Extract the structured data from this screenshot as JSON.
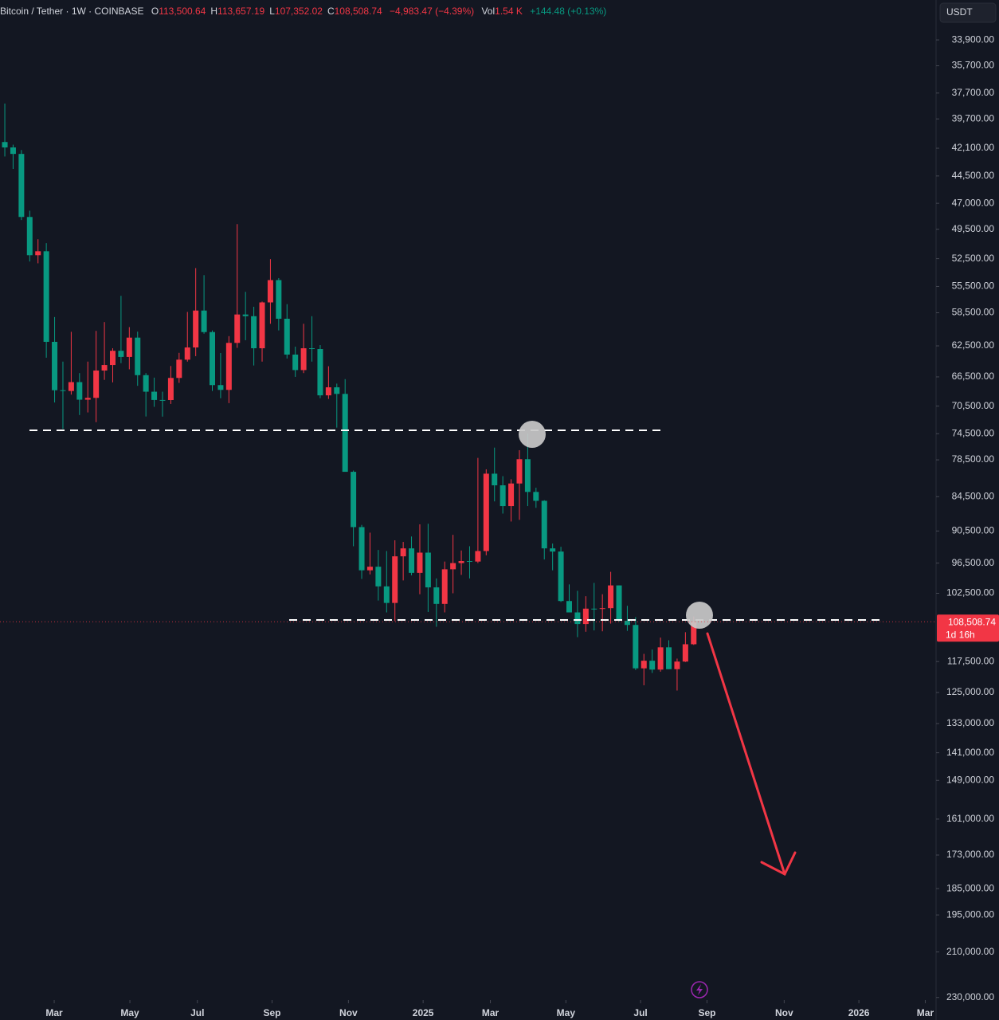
{
  "chart_data": {
    "type": "candlestick",
    "title": "Bitcoin / Tether · 1W · COINBASE",
    "ohlc_legend": [
      {
        "key": "O",
        "text": "113,500.64"
      },
      {
        "key": "H",
        "text": "113,657.19"
      },
      {
        "key": "L",
        "text": "107,352.02"
      },
      {
        "key": "C",
        "text": "108,508.74"
      }
    ],
    "change_label": "−4,983.47 (−4.39%)",
    "volume_key": "Vol",
    "volume_label": "1.54 K",
    "volume_change_label": "+144.48 (+0.13%)",
    "currency": "USDT",
    "last_price": {
      "value": 108508.74,
      "label": "108,508.74"
    },
    "countdown": "1d 16h",
    "up_color": "#089981",
    "down_color": "#f23645",
    "inverted": true,
    "log_scale": true,
    "open": [
      41580,
      42030,
      42580,
      48300,
      52140,
      51730,
      62000,
      68300,
      68400,
      67200,
      69600,
      69350,
      65660,
      64940,
      63120,
      63900,
      61480,
      66270,
      68500,
      69640,
      69650,
      66640,
      64250,
      62700,
      58240,
      60800,
      67600,
      68250,
      62130,
      58700,
      58900,
      62800,
      57300,
      54800,
      59200,
      63600,
      65600,
      62800,
      62900,
      69000,
      67900,
      68800,
      80400,
      89800,
      97900,
      97200,
      101100,
      104500,
      95200,
      93700,
      98400,
      94500,
      101300,
      104700,
      97700,
      96500,
      96100,
      96200,
      94200,
      80700,
      82600,
      86100,
      82300,
      78400,
      83700,
      85200,
      93700,
      94300,
      104100,
      106500,
      109000,
      105700,
      105700,
      105600,
      100900,
      108300,
      109200,
      119100,
      117300,
      119400,
      114200,
      119300,
      117500,
      113500.64
    ],
    "high": [
      42800,
      43880,
      48600,
      52800,
      52990,
      64000,
      69990,
      73780,
      68900,
      71770,
      71400,
      72800,
      66900,
      67230,
      64700,
      65500,
      67700,
      71980,
      70600,
      72000,
      70200,
      67300,
      64500,
      63800,
      61000,
      68400,
      69400,
      70080,
      62750,
      61800,
      65000,
      64500,
      59800,
      60600,
      64100,
      66500,
      66000,
      64500,
      69400,
      69500,
      73600,
      80300,
      93300,
      99600,
      98700,
      104000,
      106500,
      108350,
      99900,
      98900,
      102700,
      106400,
      109600,
      106500,
      102500,
      98800,
      99500,
      96500,
      95000,
      85300,
      87400,
      88800,
      88500,
      86100,
      86400,
      95800,
      97900,
      104300,
      105800,
      111900,
      110700,
      110400,
      110600,
      108900,
      108500,
      110500,
      119500,
      123200,
      120200,
      119900,
      119300,
      124500,
      117600,
      113657.19
    ],
    "low": [
      38500,
      41800,
      42250,
      47700,
      50500,
      50900,
      59000,
      64500,
      60770,
      66000,
      64500,
      60660,
      59600,
      62800,
      56550,
      60200,
      60750,
      66000,
      66600,
      68500,
      65070,
      63380,
      58400,
      53500,
      54260,
      60600,
      63400,
      61300,
      49000,
      56100,
      57800,
      57200,
      52550,
      54580,
      57500,
      62600,
      59800,
      58900,
      62400,
      65100,
      67400,
      66800,
      80200,
      89400,
      90800,
      94000,
      94200,
      92200,
      92500,
      91500,
      89300,
      89200,
      99500,
      96200,
      91200,
      94100,
      93300,
      78200,
      80000,
      76600,
      81100,
      81600,
      77000,
      74500,
      83000,
      85100,
      92800,
      93400,
      100700,
      102000,
      103100,
      100400,
      102700,
      98200,
      100900,
      105100,
      107500,
      115700,
      114700,
      112000,
      112600,
      116800,
      110800,
      107352.02
    ],
    "close": [
      42030,
      42580,
      48300,
      52140,
      51730,
      62000,
      68300,
      68400,
      67200,
      69600,
      69350,
      65660,
      64940,
      63120,
      63900,
      61480,
      66270,
      68500,
      69640,
      69650,
      66640,
      64250,
      62700,
      58240,
      60800,
      67600,
      68250,
      62130,
      58700,
      58900,
      62800,
      57300,
      54800,
      59200,
      63600,
      65600,
      62800,
      62900,
      69000,
      67900,
      68800,
      80400,
      89800,
      97900,
      97200,
      101100,
      104500,
      95200,
      93700,
      98400,
      94500,
      101300,
      104700,
      97700,
      96500,
      96100,
      96200,
      94200,
      80700,
      82600,
      86100,
      82300,
      78400,
      83700,
      85200,
      93700,
      94300,
      104100,
      106500,
      109000,
      105700,
      105700,
      105600,
      100900,
      108300,
      109200,
      119100,
      117300,
      119400,
      114200,
      119300,
      117500,
      113500,
      108508.74
    ],
    "ylim": [
      31300,
      231200
    ],
    "yticks": [
      {
        "value": 33900,
        "label": "33,900.00"
      },
      {
        "value": 35700,
        "label": "35,700.00"
      },
      {
        "value": 37700,
        "label": "37,700.00"
      },
      {
        "value": 39700,
        "label": "39,700.00"
      },
      {
        "value": 42100,
        "label": "42,100.00"
      },
      {
        "value": 44500,
        "label": "44,500.00"
      },
      {
        "value": 47000,
        "label": "47,000.00"
      },
      {
        "value": 49500,
        "label": "49,500.00"
      },
      {
        "value": 52500,
        "label": "52,500.00"
      },
      {
        "value": 55500,
        "label": "55,500.00"
      },
      {
        "value": 58500,
        "label": "58,500.00"
      },
      {
        "value": 62500,
        "label": "62,500.00"
      },
      {
        "value": 66500,
        "label": "66,500.00"
      },
      {
        "value": 70500,
        "label": "70,500.00"
      },
      {
        "value": 74500,
        "label": "74,500.00"
      },
      {
        "value": 78500,
        "label": "78,500.00"
      },
      {
        "value": 84500,
        "label": "84,500.00"
      },
      {
        "value": 90500,
        "label": "90,500.00"
      },
      {
        "value": 96500,
        "label": "96,500.00"
      },
      {
        "value": 102500,
        "label": "102,500.00"
      },
      {
        "value": 117500,
        "label": "117,500.00"
      },
      {
        "value": 125000,
        "label": "125,000.00"
      },
      {
        "value": 133000,
        "label": "133,000.00"
      },
      {
        "value": 141000,
        "label": "141,000.00"
      },
      {
        "value": 149000,
        "label": "149,000.00"
      },
      {
        "value": 161000,
        "label": "161,000.00"
      },
      {
        "value": 173000,
        "label": "173,000.00"
      },
      {
        "value": 185000,
        "label": "185,000.00"
      },
      {
        "value": 195000,
        "label": "195,000.00"
      },
      {
        "value": 210000,
        "label": "210,000.00"
      },
      {
        "value": 230000,
        "label": "230,000.00"
      }
    ],
    "xlim": [
      -0.58,
      112.2
    ],
    "xticks": [
      {
        "value": 5.95,
        "label": "Mar"
      },
      {
        "value": 15.07,
        "label": "May"
      },
      {
        "value": 23.2,
        "label": "Jul"
      },
      {
        "value": 32.2,
        "label": "Sep"
      },
      {
        "value": 41.4,
        "label": "Nov"
      },
      {
        "value": 50.4,
        "label": "2025"
      },
      {
        "value": 58.5,
        "label": "Mar"
      },
      {
        "value": 67.6,
        "label": "May"
      },
      {
        "value": 76.6,
        "label": "Jul"
      },
      {
        "value": 84.6,
        "label": "Sep"
      },
      {
        "value": 93.9,
        "label": "Nov"
      },
      {
        "value": 102.9,
        "label": "2026"
      },
      {
        "value": 110.9,
        "label": "Mar"
      }
    ]
  }
}
